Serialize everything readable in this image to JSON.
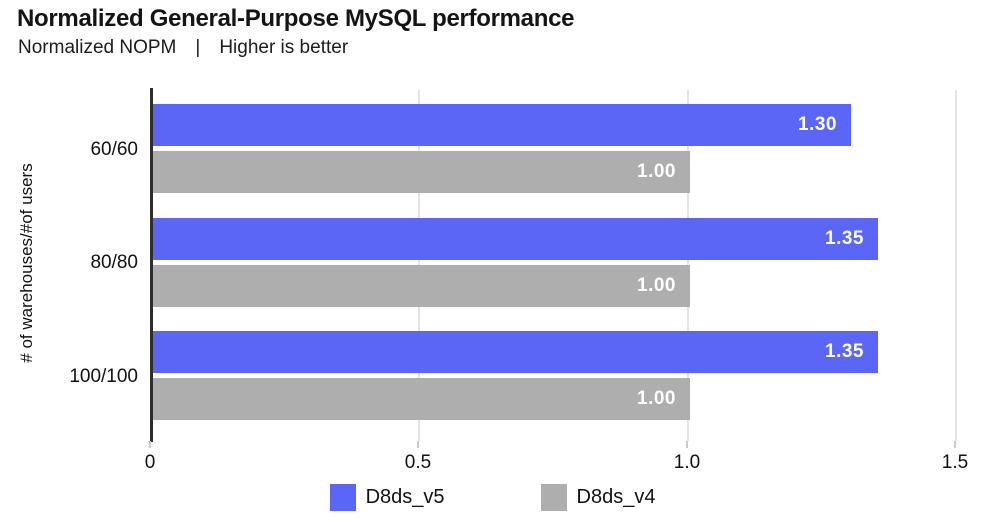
{
  "chart_data": {
    "type": "bar",
    "orientation": "horizontal",
    "title": "Normalized General-Purpose MySQL performance",
    "subtitle": {
      "metric": "Normalized NOPM",
      "separator": "|",
      "note": "Higher is better"
    },
    "ylabel": "# of warehouses/#of users",
    "xlabel": "",
    "categories": [
      "60/60",
      "80/80",
      "100/100"
    ],
    "series": [
      {
        "name": "D8ds_v5",
        "color": "#5b66f6",
        "values": [
          1.3,
          1.35,
          1.35
        ],
        "labels": [
          "1.30",
          "1.35",
          "1.35"
        ]
      },
      {
        "name": "D8ds_v4",
        "color": "#aeaeae",
        "values": [
          1.0,
          1.0,
          1.0
        ],
        "labels": [
          "1.00",
          "1.00",
          "1.00"
        ]
      }
    ],
    "xlim": [
      0,
      1.5
    ],
    "xticks": [
      {
        "value": 0,
        "label": "0"
      },
      {
        "value": 0.5,
        "label": "0.5"
      },
      {
        "value": 1.0,
        "label": "1.0"
      },
      {
        "value": 1.5,
        "label": "1.5"
      }
    ],
    "grid": "vertical",
    "legend_position": "bottom",
    "value_labels": "inside-end"
  },
  "colors": {
    "background": "#ffffff",
    "axis_line": "#2e2e2e",
    "gridline": "#e4e4e4",
    "text": "#111111",
    "bar_label_text": "#ffffff"
  }
}
